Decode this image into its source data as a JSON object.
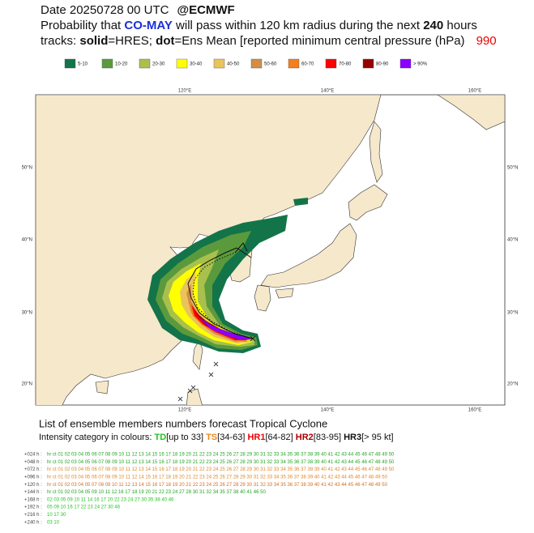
{
  "header": {
    "date": "Date 20250728 00 UTC",
    "source": "@ECMWF",
    "line2": [
      "Probability that",
      "CO-MAY",
      "will pass within 120 km radius during the next",
      "240",
      "hours"
    ],
    "line3": [
      "tracks:",
      "solid",
      "=HRES;",
      "dot",
      "=Ens Mean [reported minimum central pressure (hPa)",
      "990"
    ]
  },
  "legend": [
    {
      "label": "5-10",
      "color": "#13744a"
    },
    {
      "label": "10-20",
      "color": "#5b9a3c"
    },
    {
      "label": "20-30",
      "color": "#a9c04c"
    },
    {
      "label": "30-40",
      "color": "#ffff00"
    },
    {
      "label": "40-50",
      "color": "#e9c45a"
    },
    {
      "label": "50-60",
      "color": "#d38d45"
    },
    {
      "label": "60-70",
      "color": "#f47f1f"
    },
    {
      "label": "70-80",
      "color": "#ff0000"
    },
    {
      "label": "80-90",
      "color": "#990000"
    },
    {
      "label": "> 90%",
      "color": "#8b00ff"
    }
  ],
  "map": {
    "lon_labels": [
      "120°E",
      "140°E",
      "160°E"
    ],
    "lat_labels": [
      "50°N",
      "40°N",
      "30°N",
      "20°N"
    ]
  },
  "members": {
    "title": "List of ensemble members numbers forecast Tropical Cyclone",
    "intensity": [
      "Intensity category in colours:",
      "TD",
      "[up to 33]",
      "TS",
      "[34-63]",
      "HR1",
      "[64-82]",
      "HR2",
      "[83-95]",
      "HR3",
      "[> 95 kt]"
    ],
    "rows": [
      {
        "label": "+024 h :",
        "text": "hr ct 01 02 03 04 05 06 07 08 09 10 11 12 13 14 15 16 17 18 19 20 21 22 23 24 25 26 27 28 29 30 31 32 33 34 35 36 37 38 39 40 41 42 43 44 45 46 47 48 49 50"
      },
      {
        "label": "+048 h :",
        "text": "hr ct 01 02 03 04 05 06 07 08 09 10 11 12 13 14 15 16 17 18 19 20 21 22 23 24 25 26 27 28 29 30 31 32 33 34 35 36 37 38 39 40 41 42 43 44 45 46 47 48 49 50"
      },
      {
        "label": "+072 h :",
        "text": "hr ct 01 02 03 04 05 06 07 08 09 10 11 12 13 14 15 16 17 18 19 20 21 22 23 24 25 26 27 28 29 30 31 32 33 34 35 36 37 38 39 40 41 42 43 44 45 46 47 48 49 50"
      },
      {
        "label": "+096 h :",
        "text": "hr ct 01 02 03 04 05 06 07 08 09 10 11 12 14 15 16 17 18 19 20 21 22 23 24 25 26 27 28 29 30 31 32 33 34 35 36 37 38 39 40 41 42 43 44 45 46 47 48 49 50"
      },
      {
        "label": "+120 h :",
        "text": "hr ct 01 02 03 04 05 07 08 09 10 11 12 13 14 15 16 17 18 19 20 21 22 23 24 25 26 27 28 29 30 31 32 33 34 35 36 37 38 39 40 41 42 43 44 45 46 47 48 49 50"
      },
      {
        "label": "+144 h :",
        "text": "hr ct 01 02 03 04 05 09 10 11 12 16 17 18 19 20 21 22 23 24 27 28 30 31 32 34 35 37 38 40 41 46 50"
      },
      {
        "label": "+168 h :",
        "text": "02 03 05 09 10 11 14 16 17 20 22 23 24 27 30 35 38 40 46"
      },
      {
        "label": "+192 h :",
        "text": "05 09 10 16 17 22 23 24 27 30 46"
      },
      {
        "label": "+216 h :",
        "text": "10 17 30"
      },
      {
        "label": "+240 h :",
        "text": "03 10"
      }
    ]
  }
}
